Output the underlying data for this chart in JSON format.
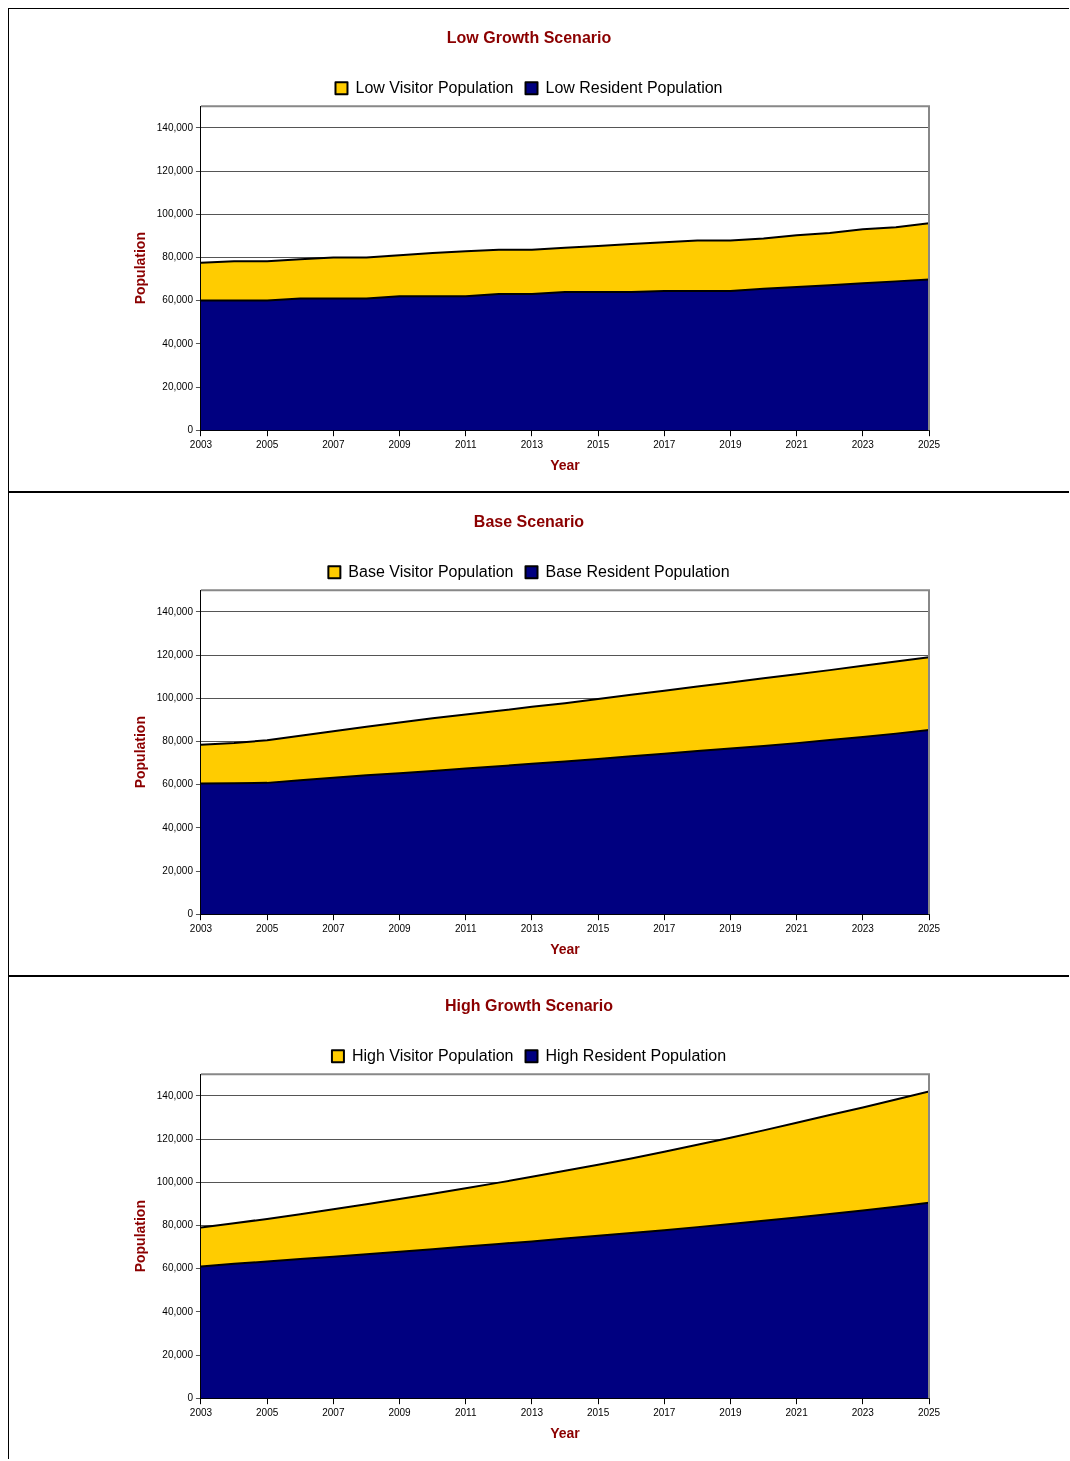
{
  "chart_data": [
    {
      "type": "area",
      "title": "Low Growth Scenario",
      "xlabel": "Year",
      "ylabel": "Population",
      "stacked": true,
      "legend": "top",
      "grid": "y",
      "x": [
        2003,
        2004,
        2005,
        2006,
        2007,
        2008,
        2009,
        2010,
        2011,
        2012,
        2013,
        2014,
        2015,
        2016,
        2017,
        2018,
        2019,
        2020,
        2021,
        2022,
        2023,
        2024,
        2025
      ],
      "xlim": [
        2003,
        2025
      ],
      "xticks": [
        2003,
        2005,
        2007,
        2009,
        2011,
        2013,
        2015,
        2017,
        2019,
        2021,
        2023,
        2025
      ],
      "ylim": [
        0,
        150000
      ],
      "yticks": [
        {
          "value": 0,
          "label": "0"
        },
        {
          "value": 20000,
          "label": "20,000"
        },
        {
          "value": 40000,
          "label": "40,000"
        },
        {
          "value": 60000,
          "label": "60,000"
        },
        {
          "value": 80000,
          "label": "80,000"
        },
        {
          "value": 100000,
          "label": "100,000"
        },
        {
          "value": 120000,
          "label": "120,000"
        },
        {
          "value": 140000,
          "label": "140,000"
        }
      ],
      "series": [
        {
          "name": "Low Resident Population",
          "color": "#000080",
          "values": [
            60000,
            60000,
            60000,
            61000,
            61000,
            61000,
            62000,
            62000,
            62000,
            63000,
            63000,
            64000,
            64000,
            64000,
            64500,
            64500,
            64500,
            65500,
            66300,
            67100,
            68000,
            68900,
            69800
          ]
        },
        {
          "name": "Low Visitor Population",
          "color": "#ffcc00",
          "values": [
            17500,
            18200,
            18200,
            18200,
            19000,
            19000,
            19000,
            20000,
            20800,
            20500,
            20500,
            20500,
            21300,
            22200,
            22500,
            23300,
            23300,
            23200,
            24000,
            24200,
            25000,
            25100,
            26000
          ]
        }
      ]
    },
    {
      "type": "area",
      "title": "Base Scenario",
      "xlabel": "Year",
      "ylabel": "Population",
      "stacked": true,
      "legend": "top",
      "grid": "y",
      "x": [
        2003,
        2004,
        2005,
        2006,
        2007,
        2008,
        2009,
        2010,
        2011,
        2012,
        2013,
        2014,
        2015,
        2016,
        2017,
        2018,
        2019,
        2020,
        2021,
        2022,
        2023,
        2024,
        2025
      ],
      "xlim": [
        2003,
        2025
      ],
      "xticks": [
        2003,
        2005,
        2007,
        2009,
        2011,
        2013,
        2015,
        2017,
        2019,
        2021,
        2023,
        2025
      ],
      "ylim": [
        0,
        150000
      ],
      "yticks": [
        {
          "value": 0,
          "label": "0"
        },
        {
          "value": 20000,
          "label": "20,000"
        },
        {
          "value": 40000,
          "label": "40,000"
        },
        {
          "value": 60000,
          "label": "60,000"
        },
        {
          "value": 80000,
          "label": "80,000"
        },
        {
          "value": 100000,
          "label": "100,000"
        },
        {
          "value": 120000,
          "label": "120,000"
        },
        {
          "value": 140000,
          "label": "140,000"
        }
      ],
      "series": [
        {
          "name": "Base Resident Population",
          "color": "#000080",
          "values": [
            60500,
            60600,
            60800,
            62000,
            63200,
            64300,
            65300,
            66300,
            67400,
            68500,
            69600,
            70700,
            71900,
            73100,
            74300,
            75500,
            76700,
            77900,
            79200,
            80600,
            82000,
            83600,
            85300
          ]
        },
        {
          "name": "Base Visitor Population",
          "color": "#ffcc00",
          "values": [
            18000,
            18700,
            19700,
            20600,
            21500,
            22500,
            23500,
            24400,
            25100,
            25700,
            26400,
            27000,
            27700,
            28500,
            29200,
            29900,
            30600,
            31300,
            31900,
            32400,
            33000,
            33400,
            33700
          ]
        }
      ]
    },
    {
      "type": "area",
      "title": "High Growth Scenario",
      "xlabel": "Year",
      "ylabel": "Population",
      "stacked": true,
      "legend": "top",
      "grid": "y",
      "x": [
        2003,
        2004,
        2005,
        2006,
        2007,
        2008,
        2009,
        2010,
        2011,
        2012,
        2013,
        2014,
        2015,
        2016,
        2017,
        2018,
        2019,
        2020,
        2021,
        2022,
        2023,
        2024,
        2025
      ],
      "xlim": [
        2003,
        2025
      ],
      "xticks": [
        2003,
        2005,
        2007,
        2009,
        2011,
        2013,
        2015,
        2017,
        2019,
        2021,
        2023,
        2025
      ],
      "ylim": [
        0,
        150000
      ],
      "yticks": [
        {
          "value": 0,
          "label": "0"
        },
        {
          "value": 20000,
          "label": "20,000"
        },
        {
          "value": 40000,
          "label": "40,000"
        },
        {
          "value": 60000,
          "label": "60,000"
        },
        {
          "value": 80000,
          "label": "80,000"
        },
        {
          "value": 100000,
          "label": "100,000"
        },
        {
          "value": 120000,
          "label": "120,000"
        },
        {
          "value": 140000,
          "label": "140,000"
        }
      ],
      "series": [
        {
          "name": "High Resident Population",
          "color": "#000080",
          "values": [
            61000,
            62200,
            63300,
            64400,
            65500,
            66600,
            67800,
            69000,
            70200,
            71400,
            72600,
            73900,
            75200,
            76500,
            77800,
            79200,
            80700,
            82200,
            83700,
            85300,
            86900,
            88600,
            90500
          ]
        },
        {
          "name": "High Visitor Population",
          "color": "#ffcc00",
          "values": [
            18000,
            18800,
            19700,
            20800,
            22000,
            23200,
            24400,
            25700,
            27000,
            28400,
            29900,
            31400,
            32900,
            34500,
            36300,
            38100,
            39900,
            41800,
            43800,
            45800,
            47700,
            49700,
            51500
          ]
        }
      ]
    }
  ]
}
